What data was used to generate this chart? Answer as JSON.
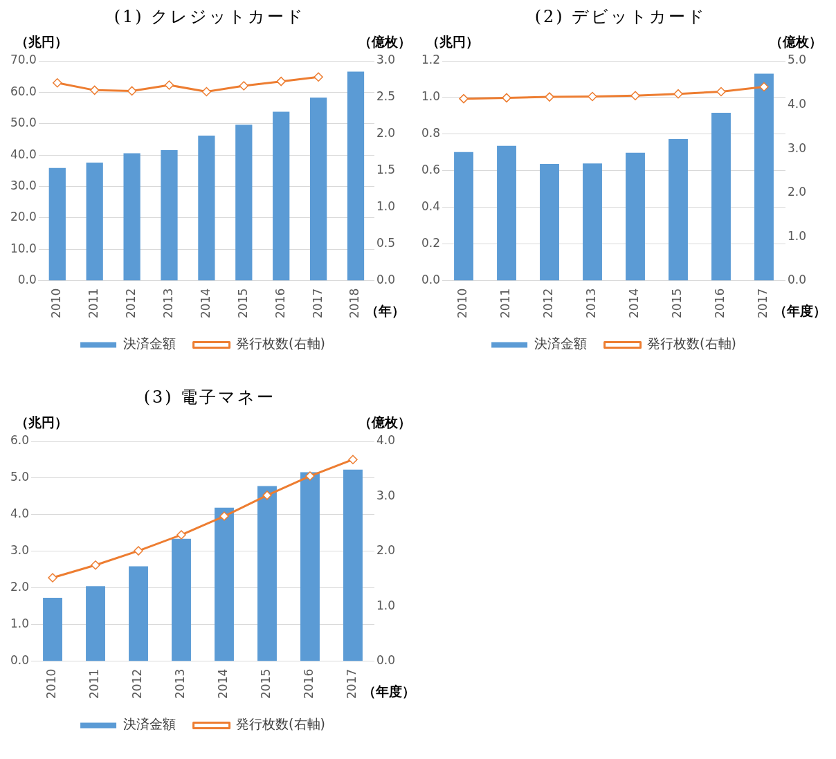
{
  "chart_data": [
    {
      "type": "bar",
      "title": "(1) クレジットカード",
      "ylabel": "（兆円）",
      "y2label": "（億枚）",
      "xlabel": "（年）",
      "categories": [
        "2010",
        "2011",
        "2012",
        "2013",
        "2014",
        "2015",
        "2016",
        "2017",
        "2018"
      ],
      "series": [
        {
          "name": "決済金額",
          "color": "#5b9bd5",
          "values": [
            35.9,
            37.6,
            40.6,
            41.6,
            46.2,
            49.7,
            53.8,
            58.3,
            66.6
          ]
        },
        {
          "name": "発行枚数(右軸)",
          "type": "line",
          "axis": "y2",
          "color": "#ed7d31",
          "marker": "diamond",
          "values": [
            2.7,
            2.6,
            2.59,
            2.67,
            2.58,
            2.66,
            2.72,
            2.78,
            null
          ]
        }
      ],
      "ylim": [
        0,
        70
      ],
      "yticks": [
        {
          "value": 0,
          "label": "0.0"
        },
        {
          "value": 10,
          "label": "10.0"
        },
        {
          "value": 20,
          "label": "20.0"
        },
        {
          "value": 30,
          "label": "30.0"
        },
        {
          "value": 40,
          "label": "40.0"
        },
        {
          "value": 50,
          "label": "50.0"
        },
        {
          "value": 60,
          "label": "60.0"
        },
        {
          "value": 70,
          "label": "70.0"
        }
      ],
      "y2lim": [
        0,
        3
      ],
      "y2ticks": [
        {
          "value": 0,
          "label": "0.0"
        },
        {
          "value": 0.5,
          "label": "0.5"
        },
        {
          "value": 1,
          "label": "1.0"
        },
        {
          "value": 1.5,
          "label": "1.5"
        },
        {
          "value": 2,
          "label": "2.0"
        },
        {
          "value": 2.5,
          "label": "2.5"
        },
        {
          "value": 3,
          "label": "3.0"
        }
      ],
      "grid": "y",
      "legend": "bottom"
    },
    {
      "type": "bar",
      "title": "(2) デビットカード",
      "ylabel": "（兆円）",
      "y2label": "（億枚）",
      "xlabel": "（年度）",
      "categories": [
        "2010",
        "2011",
        "2012",
        "2013",
        "2014",
        "2015",
        "2016",
        "2017"
      ],
      "series": [
        {
          "name": "決済金額",
          "color": "#5b9bd5",
          "values": [
            0.702,
            0.736,
            0.637,
            0.64,
            0.699,
            0.773,
            0.917,
            1.13
          ]
        },
        {
          "name": "発行枚数(右軸)",
          "type": "line",
          "axis": "y2",
          "color": "#ed7d31",
          "marker": "diamond",
          "values": [
            4.14,
            4.16,
            4.18,
            4.19,
            4.21,
            4.25,
            4.3,
            4.41
          ]
        }
      ],
      "ylim": [
        0,
        1.2
      ],
      "yticks": [
        {
          "value": 0,
          "label": "0.0"
        },
        {
          "value": 0.2,
          "label": "0.2"
        },
        {
          "value": 0.4,
          "label": "0.4"
        },
        {
          "value": 0.6,
          "label": "0.6"
        },
        {
          "value": 0.8,
          "label": "0.8"
        },
        {
          "value": 1,
          "label": "1.0"
        },
        {
          "value": 1.2,
          "label": "1.2"
        }
      ],
      "y2lim": [
        0,
        5
      ],
      "y2ticks": [
        {
          "value": 0,
          "label": "0.0"
        },
        {
          "value": 1,
          "label": "1.0"
        },
        {
          "value": 2,
          "label": "2.0"
        },
        {
          "value": 3,
          "label": "3.0"
        },
        {
          "value": 4,
          "label": "4.0"
        },
        {
          "value": 5,
          "label": "5.0"
        }
      ],
      "grid": "y",
      "legend": "bottom"
    },
    {
      "type": "bar",
      "title": "(3) 電子マネー",
      "ylabel": "（兆円）",
      "y2label": "（億枚）",
      "xlabel": "（年度）",
      "categories": [
        "2010",
        "2011",
        "2012",
        "2013",
        "2014",
        "2015",
        "2016",
        "2017"
      ],
      "series": [
        {
          "name": "決済金額",
          "color": "#5b9bd5",
          "values": [
            1.73,
            2.05,
            2.59,
            3.34,
            4.19,
            4.78,
            5.16,
            5.23
          ]
        },
        {
          "name": "発行枚数(右軸)",
          "type": "line",
          "axis": "y2",
          "color": "#ed7d31",
          "marker": "diamond",
          "values": [
            1.52,
            1.75,
            2.01,
            2.3,
            2.64,
            3.02,
            3.37,
            3.67
          ]
        }
      ],
      "ylim": [
        0,
        6
      ],
      "yticks": [
        {
          "value": 0,
          "label": "0.0"
        },
        {
          "value": 1,
          "label": "1.0"
        },
        {
          "value": 2,
          "label": "2.0"
        },
        {
          "value": 3,
          "label": "3.0"
        },
        {
          "value": 4,
          "label": "4.0"
        },
        {
          "value": 5,
          "label": "5.0"
        },
        {
          "value": 6,
          "label": "6.0"
        }
      ],
      "y2lim": [
        0,
        4
      ],
      "y2ticks": [
        {
          "value": 0,
          "label": "0.0"
        },
        {
          "value": 1,
          "label": "1.0"
        },
        {
          "value": 2,
          "label": "2.0"
        },
        {
          "value": 3,
          "label": "3.0"
        },
        {
          "value": 4,
          "label": "4.0"
        }
      ],
      "grid": "y",
      "legend": "bottom"
    }
  ]
}
